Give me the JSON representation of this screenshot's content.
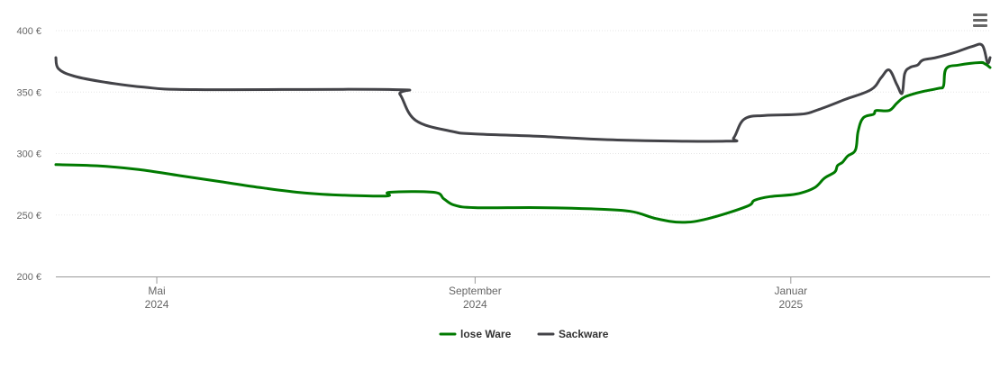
{
  "chart_data": {
    "type": "line",
    "title": "",
    "xlabel": "",
    "ylabel": "",
    "ylim": [
      200,
      400
    ],
    "y_ticks": [
      "400 €",
      "350 €",
      "300 €",
      "250 €",
      "200 €"
    ],
    "y_tick_values": [
      400,
      350,
      300,
      250,
      200
    ],
    "x_ticks": [
      {
        "date": "2024-05-01",
        "line1": "Mai",
        "line2": "2024"
      },
      {
        "date": "2024-09-01",
        "line1": "September",
        "line2": "2024"
      },
      {
        "date": "2025-01-01",
        "line1": "Januar",
        "line2": "2025"
      }
    ],
    "xlim": [
      "2024-03-23",
      "2025-03-19"
    ],
    "grid": "horizontal",
    "legend_position": "bottom-center",
    "series": [
      {
        "name": "lose Ware",
        "color": "#007a00",
        "points": [
          [
            "2024-03-23",
            291
          ],
          [
            "2024-04-08",
            290
          ],
          [
            "2024-04-24",
            287
          ],
          [
            "2024-05-10",
            282
          ],
          [
            "2024-05-26",
            277
          ],
          [
            "2024-06-11",
            272
          ],
          [
            "2024-06-27",
            268
          ],
          [
            "2024-07-13",
            266
          ],
          [
            "2024-07-29",
            265.5
          ],
          [
            "2024-07-30",
            268.5
          ],
          [
            "2024-08-16",
            268.5
          ],
          [
            "2024-08-20",
            263
          ],
          [
            "2024-08-24",
            258
          ],
          [
            "2024-09-01",
            256
          ],
          [
            "2024-09-26",
            256
          ],
          [
            "2024-10-16",
            255
          ],
          [
            "2024-10-31",
            253
          ],
          [
            "2024-11-10",
            247
          ],
          [
            "2024-11-20",
            244
          ],
          [
            "2024-11-30",
            247
          ],
          [
            "2024-12-15",
            257
          ],
          [
            "2024-12-18",
            262
          ],
          [
            "2024-12-24",
            265
          ],
          [
            "2025-01-03",
            267
          ],
          [
            "2025-01-10",
            272
          ],
          [
            "2025-01-14",
            280
          ],
          [
            "2025-01-18",
            285
          ],
          [
            "2025-01-19",
            290
          ],
          [
            "2025-01-21",
            293
          ],
          [
            "2025-01-23",
            298
          ],
          [
            "2025-01-26",
            303
          ],
          [
            "2025-01-27",
            318
          ],
          [
            "2025-01-29",
            329
          ],
          [
            "2025-02-02",
            332
          ],
          [
            "2025-02-03",
            335
          ],
          [
            "2025-02-08",
            335
          ],
          [
            "2025-02-11",
            341
          ],
          [
            "2025-02-14",
            346
          ],
          [
            "2025-02-20",
            350
          ],
          [
            "2025-02-27",
            353
          ],
          [
            "2025-02-29",
            355
          ],
          [
            "2025-03-02",
            369
          ],
          [
            "2025-03-07",
            372
          ],
          [
            "2025-03-15",
            374
          ],
          [
            "2025-03-17",
            373
          ],
          [
            "2025-03-19",
            370
          ]
        ]
      },
      {
        "name": "Sackware",
        "color": "#434348",
        "points": [
          [
            "2024-03-23",
            378
          ],
          [
            "2024-03-24",
            369
          ],
          [
            "2024-03-30",
            363
          ],
          [
            "2024-04-11",
            358
          ],
          [
            "2024-04-26",
            354
          ],
          [
            "2024-05-16",
            352
          ],
          [
            "2024-07-31",
            352
          ],
          [
            "2024-08-03",
            348
          ],
          [
            "2024-08-09",
            327
          ],
          [
            "2024-08-23",
            318
          ],
          [
            "2024-09-01",
            316
          ],
          [
            "2024-09-26",
            314
          ],
          [
            "2024-10-26",
            311
          ],
          [
            "2024-12-07",
            310
          ],
          [
            "2024-12-10",
            313
          ],
          [
            "2024-12-14",
            328
          ],
          [
            "2024-12-22",
            331
          ],
          [
            "2025-01-05",
            332
          ],
          [
            "2025-01-12",
            336
          ],
          [
            "2025-01-22",
            344
          ],
          [
            "2025-02-01",
            352
          ],
          [
            "2025-02-05",
            362
          ],
          [
            "2025-02-08",
            368
          ],
          [
            "2025-02-11",
            356
          ],
          [
            "2025-02-13",
            349
          ],
          [
            "2025-02-14",
            365
          ],
          [
            "2025-02-16",
            370
          ],
          [
            "2025-02-19",
            372
          ],
          [
            "2025-02-21",
            376
          ],
          [
            "2025-02-26",
            378
          ],
          [
            "2025-03-05",
            382
          ],
          [
            "2025-03-12",
            387
          ],
          [
            "2025-03-16",
            388
          ],
          [
            "2025-03-18",
            374
          ],
          [
            "2025-03-19",
            378
          ]
        ]
      }
    ]
  },
  "icons": {
    "menu": "hamburger-menu-icon"
  }
}
